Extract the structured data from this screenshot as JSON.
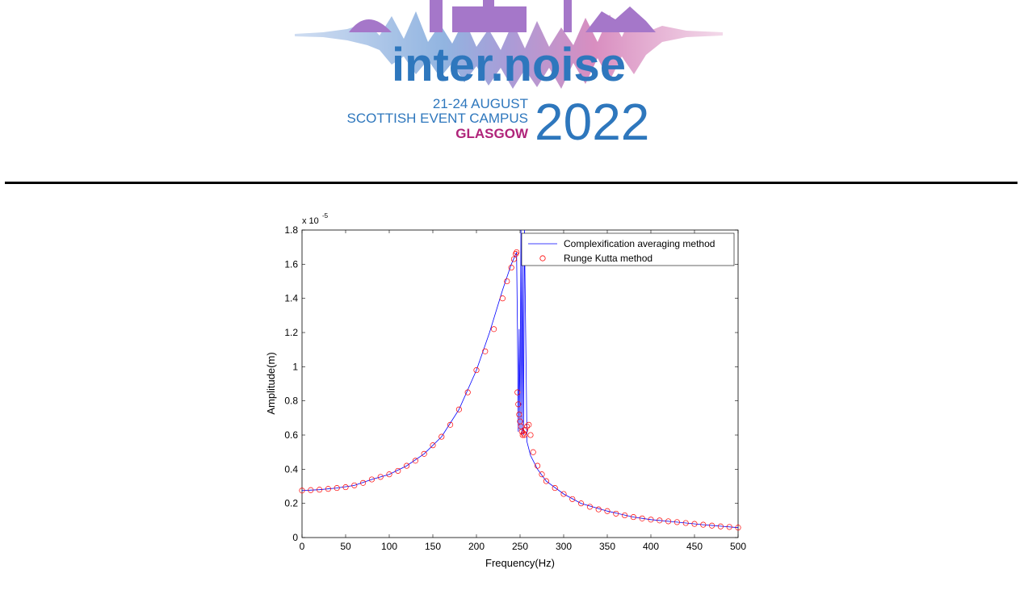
{
  "header": {
    "logo_word": "inter.noise",
    "dates": "21-24 AUGUST",
    "venue": "SCOTTISH EVENT CAMPUS",
    "city": "GLASGOW",
    "year": "2022",
    "colors": {
      "brand_blue": "#2e77bd",
      "brand_magenta": "#b0247a",
      "silhouette_purple": "#a577c9"
    }
  },
  "chart_data": {
    "type": "line",
    "xlabel": "Frequency(Hz)",
    "ylabel": "Amplitude(m)",
    "y_exponent_label": "x 10",
    "y_exponent_power": "-5",
    "xlim": [
      0,
      500
    ],
    "ylim": [
      0,
      1.8
    ],
    "x_ticks": [
      "0",
      "50",
      "100",
      "150",
      "200",
      "250",
      "300",
      "350",
      "400",
      "450",
      "500"
    ],
    "y_ticks": [
      "0",
      "0.2",
      "0.4",
      "0.6",
      "0.8",
      "1",
      "1.2",
      "1.4",
      "1.6",
      "1.8"
    ],
    "legend_position": "top-right",
    "series": [
      {
        "name": "Complexification averaging method",
        "style": "line",
        "color": "#0000ff",
        "x": [
          0,
          20,
          40,
          60,
          80,
          100,
          120,
          140,
          160,
          180,
          200,
          215,
          230,
          240,
          246,
          247,
          248,
          249,
          250,
          251,
          252,
          253,
          254,
          255,
          258,
          262,
          270,
          280,
          300,
          320,
          350,
          380,
          400,
          430,
          460,
          500
        ],
        "y": [
          0.275,
          0.28,
          0.29,
          0.305,
          0.34,
          0.37,
          0.42,
          0.49,
          0.59,
          0.75,
          0.98,
          1.2,
          1.45,
          1.6,
          1.67,
          1.22,
          0.62,
          1.22,
          0.63,
          1.8,
          0.6,
          1.65,
          0.6,
          1.8,
          0.56,
          0.48,
          0.4,
          0.33,
          0.255,
          0.2,
          0.155,
          0.12,
          0.105,
          0.09,
          0.075,
          0.058
        ]
      },
      {
        "name": "Runge Kutta method",
        "style": "markers",
        "marker": "circle",
        "color": "#ff0000",
        "x": [
          0,
          10,
          20,
          30,
          40,
          50,
          60,
          70,
          80,
          90,
          100,
          110,
          120,
          130,
          140,
          150,
          160,
          170,
          180,
          190,
          200,
          210,
          220,
          230,
          235,
          240,
          243,
          245,
          246,
          247,
          248,
          249,
          250,
          251,
          252,
          253,
          254,
          255,
          256,
          258,
          260,
          262,
          265,
          270,
          275,
          280,
          290,
          300,
          310,
          320,
          330,
          340,
          350,
          360,
          370,
          380,
          390,
          400,
          410,
          420,
          430,
          440,
          450,
          460,
          470,
          480,
          490,
          500
        ],
        "y": [
          0.275,
          0.278,
          0.28,
          0.285,
          0.29,
          0.295,
          0.305,
          0.32,
          0.34,
          0.355,
          0.37,
          0.39,
          0.42,
          0.45,
          0.49,
          0.54,
          0.59,
          0.66,
          0.75,
          0.85,
          0.98,
          1.09,
          1.22,
          1.4,
          1.5,
          1.58,
          1.63,
          1.66,
          1.67,
          0.85,
          0.78,
          0.72,
          0.68,
          0.65,
          0.62,
          0.6,
          0.61,
          0.6,
          0.63,
          0.65,
          0.66,
          0.6,
          0.5,
          0.42,
          0.37,
          0.33,
          0.29,
          0.255,
          0.225,
          0.2,
          0.18,
          0.165,
          0.155,
          0.14,
          0.13,
          0.12,
          0.112,
          0.105,
          0.1,
          0.095,
          0.09,
          0.085,
          0.08,
          0.075,
          0.07,
          0.065,
          0.062,
          0.058
        ]
      }
    ]
  }
}
